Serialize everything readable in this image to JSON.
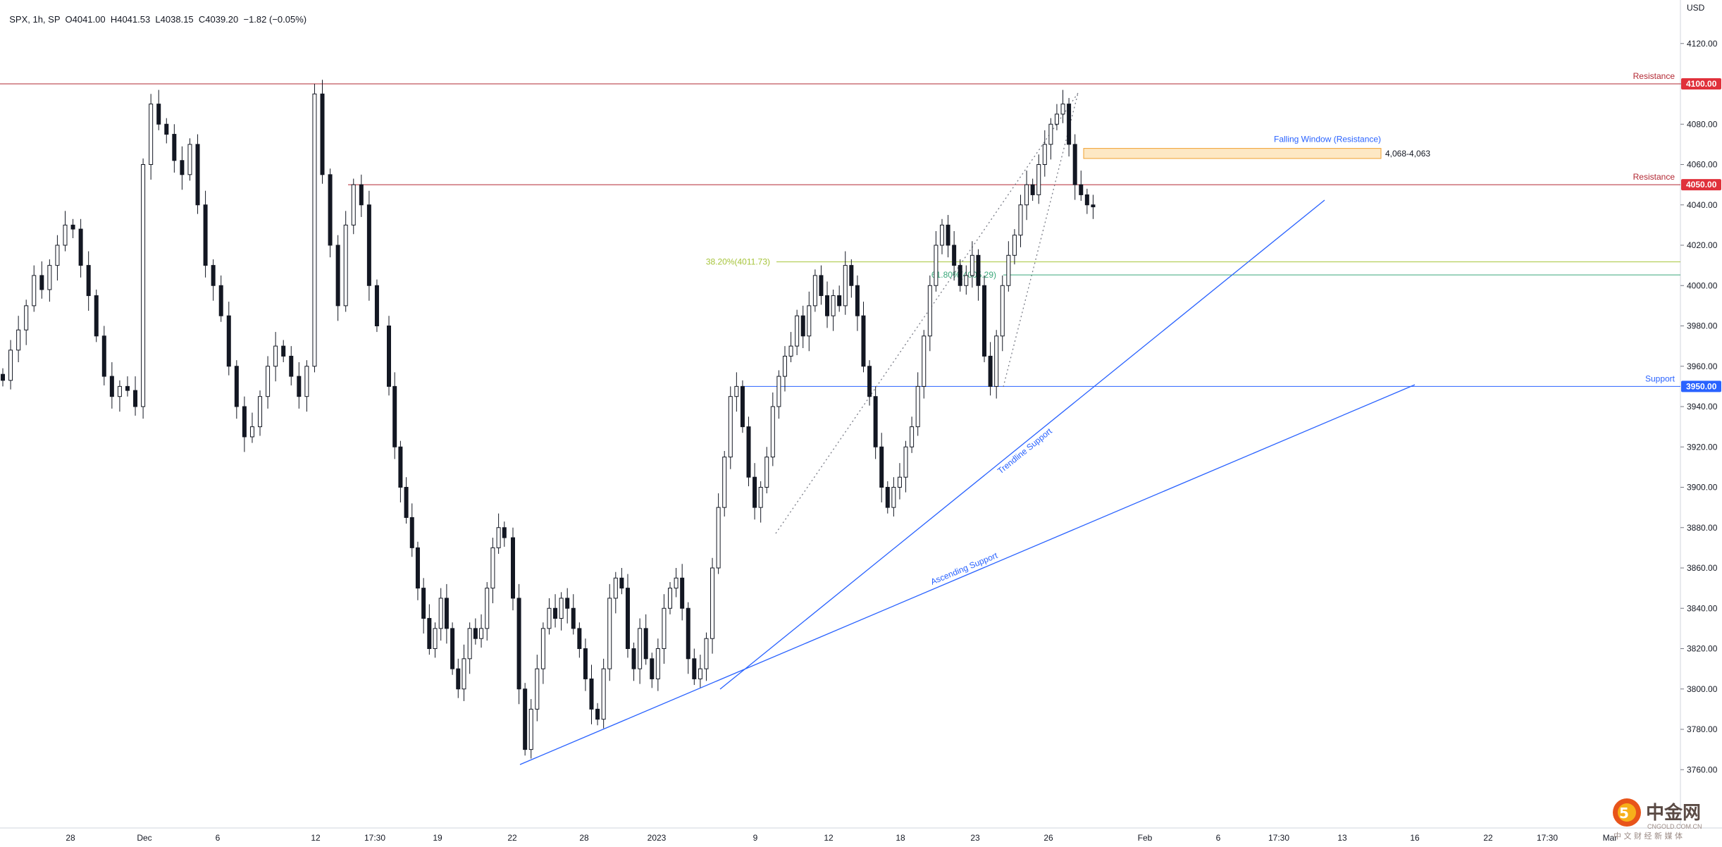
{
  "header": {
    "symbol": "SPX, 1h, SP",
    "ohlc": "O4041.00  H4041.53  L4038.15  C4039.20  −1.82 (−0.05%)"
  },
  "currency": "USD",
  "watermark": {
    "brand": "中金网",
    "sub": "CNGOLD.COM.CN",
    "tagline": "中 文 财 经 新 媒 体"
  },
  "colors": {
    "up": "#131722",
    "down": "#131722",
    "resistance": "#b22833",
    "support": "#2962ff",
    "fib38": "#a6c43a",
    "fib61": "#3aa87a",
    "zone_fill": "#fde8c4",
    "zone_stroke": "#f0a030",
    "badge_red": "#e0313b",
    "badge_blue": "#2962ff"
  },
  "chart_data": {
    "type": "candlestick",
    "title": "",
    "ylim": [
      3745,
      4130
    ],
    "yticks": [
      4120,
      4100,
      4080,
      4060,
      4040,
      4020,
      4000,
      3980,
      3960,
      3940,
      3920,
      3900,
      3880,
      3860,
      3840,
      3820,
      3800,
      3780,
      3760
    ],
    "ytick_labels": [
      "4120.00",
      "4100.00",
      "4080.00",
      "4060.00",
      "4040.00",
      "4020.00",
      "4000.00",
      "3980.00",
      "3960.00",
      "3940.00",
      "3920.00",
      "3900.00",
      "3880.00",
      "3860.00",
      "3840.00",
      "3820.00",
      "3800.00",
      "3780.00",
      "3760.00"
    ],
    "xtick_labels": [
      "28",
      "Dec",
      "6",
      "12",
      "17:30",
      "19",
      "22",
      "28",
      "2023",
      "9",
      "12",
      "18",
      "23",
      "26",
      "Feb",
      "6",
      "17:30",
      "13",
      "16",
      "22",
      "17:30",
      "Mar"
    ],
    "grid": false,
    "levels": [
      {
        "name": "Resistance",
        "value": 4100.0,
        "label": "4100.00",
        "kind": "resistance"
      },
      {
        "name": "Resistance",
        "value": 4050.0,
        "label": "4050.00",
        "kind": "resistance"
      },
      {
        "name": "Support",
        "value": 3950.0,
        "label": "3950.00",
        "kind": "support"
      }
    ],
    "fib_levels": [
      {
        "label": "38.20%(4011.73)",
        "value": 4011.73
      },
      {
        "label": "61.80%(4005.29)",
        "value": 4005.29
      }
    ],
    "zone": {
      "title": "Falling Window (Resistance)",
      "range_label": "4,068-4,063",
      "low": 4063,
      "high": 4068
    },
    "trendlines": [
      {
        "name": "Trendline Support",
        "from": [
          "Jan 4",
          3802
        ],
        "to": [
          "Feb 10",
          4043
        ]
      },
      {
        "name": "Ascending Support",
        "from": [
          "Dec 22",
          3763
        ],
        "to": [
          "Feb 16",
          3951
        ]
      }
    ],
    "candles_close": [
      3953,
      3968,
      3978,
      3990,
      4005,
      3998,
      4010,
      4020,
      4030,
      4028,
      4010,
      3995,
      3975,
      3955,
      3945,
      3950,
      3948,
      3940,
      4060,
      4090,
      4080,
      4075,
      4062,
      4055,
      4070,
      4040,
      4010,
      4000,
      3985,
      3960,
      3940,
      3925,
      3930,
      3945,
      3960,
      3970,
      3965,
      3955,
      3945,
      3960,
      4095,
      4055,
      4020,
      3990,
      4030,
      4050,
      4040,
      4000,
      3980,
      3950,
      3920,
      3900,
      3885,
      3870,
      3850,
      3835,
      3820,
      3830,
      3845,
      3830,
      3810,
      3800,
      3815,
      3830,
      3825,
      3830,
      3850,
      3870,
      3880,
      3875,
      3845,
      3800,
      3770,
      3790,
      3810,
      3830,
      3840,
      3835,
      3845,
      3840,
      3830,
      3820,
      3805,
      3790,
      3785,
      3810,
      3845,
      3855,
      3850,
      3820,
      3810,
      3830,
      3815,
      3805,
      3820,
      3840,
      3850,
      3855,
      3840,
      3815,
      3805,
      3810,
      3825,
      3860,
      3890,
      3915,
      3945,
      3950,
      3930,
      3905,
      3890,
      3900,
      3915,
      3940,
      3955,
      3965,
      3970,
      3985,
      3975,
      3990,
      4005,
      3995,
      3985,
      3995,
      3990,
      4010,
      4000,
      3985,
      3960,
      3945,
      3920,
      3900,
      3890,
      3900,
      3905,
      3920,
      3930,
      3950,
      3975,
      4000,
      4020,
      4030,
      4020,
      4010,
      4000,
      4005,
      4015,
      4000,
      3965,
      3950,
      3975,
      4000,
      4015,
      4025,
      4040,
      4050,
      4045,
      4060,
      4070,
      4080,
      4085,
      4090,
      4070,
      4050,
      4045,
      4040,
      4039
    ]
  }
}
